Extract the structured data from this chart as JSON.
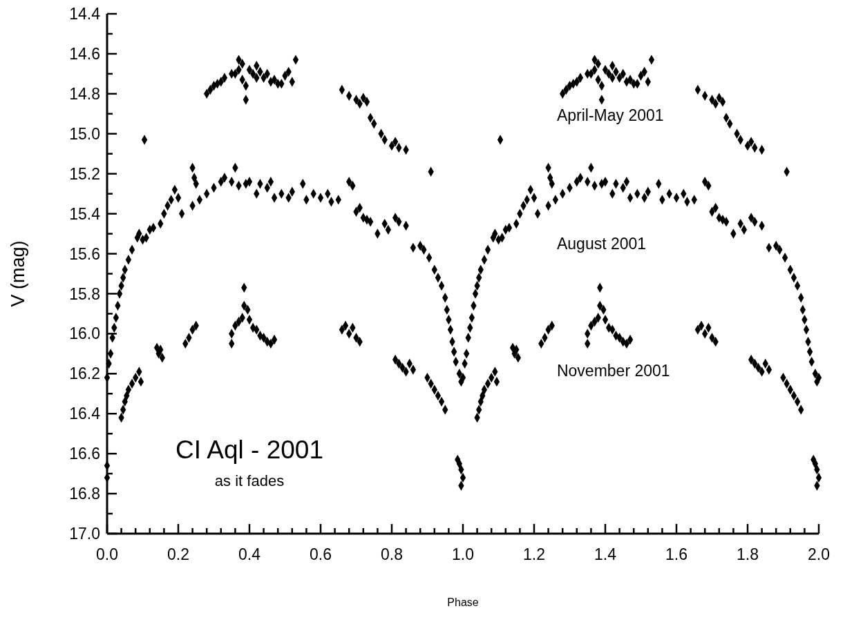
{
  "chart_data": {
    "type": "scatter",
    "title": "CI Aql - 2001",
    "subtitle": "as it fades",
    "xlabel": "Phase",
    "ylabel": "V (mag)",
    "marker": "diamond",
    "xlim": [
      0,
      2
    ],
    "ylim": [
      17,
      14.4
    ],
    "xticks": [
      {
        "value": 0,
        "label": "0.0"
      },
      {
        "value": 0.04,
        "label": null
      },
      {
        "value": 0.08,
        "label": null
      },
      {
        "value": 0.12,
        "label": null
      },
      {
        "value": 0.16,
        "label": null
      },
      {
        "value": 0.2,
        "label": "0.2"
      },
      {
        "value": 0.24,
        "label": null
      },
      {
        "value": 0.28,
        "label": null
      },
      {
        "value": 0.32,
        "label": null
      },
      {
        "value": 0.36,
        "label": null
      },
      {
        "value": 0.4,
        "label": "0.4"
      },
      {
        "value": 0.44,
        "label": null
      },
      {
        "value": 0.48,
        "label": null
      },
      {
        "value": 0.52,
        "label": null
      },
      {
        "value": 0.56,
        "label": null
      },
      {
        "value": 0.6,
        "label": "0.6"
      },
      {
        "value": 0.64,
        "label": null
      },
      {
        "value": 0.68,
        "label": null
      },
      {
        "value": 0.72,
        "label": null
      },
      {
        "value": 0.76,
        "label": null
      },
      {
        "value": 0.8,
        "label": "0.8"
      },
      {
        "value": 0.84,
        "label": null
      },
      {
        "value": 0.88,
        "label": null
      },
      {
        "value": 0.92,
        "label": null
      },
      {
        "value": 0.96,
        "label": null
      },
      {
        "value": 1,
        "label": "1.0"
      },
      {
        "value": 1.04,
        "label": null
      },
      {
        "value": 1.08,
        "label": null
      },
      {
        "value": 1.12,
        "label": null
      },
      {
        "value": 1.16,
        "label": null
      },
      {
        "value": 1.2,
        "label": "1.2"
      },
      {
        "value": 1.24,
        "label": null
      },
      {
        "value": 1.28,
        "label": null
      },
      {
        "value": 1.32,
        "label": null
      },
      {
        "value": 1.36,
        "label": null
      },
      {
        "value": 1.4,
        "label": "1.4"
      },
      {
        "value": 1.44,
        "label": null
      },
      {
        "value": 1.48,
        "label": null
      },
      {
        "value": 1.52,
        "label": null
      },
      {
        "value": 1.56,
        "label": null
      },
      {
        "value": 1.6,
        "label": "1.6"
      },
      {
        "value": 1.64,
        "label": null
      },
      {
        "value": 1.68,
        "label": null
      },
      {
        "value": 1.72,
        "label": null
      },
      {
        "value": 1.76,
        "label": null
      },
      {
        "value": 1.8,
        "label": "1.8"
      },
      {
        "value": 1.84,
        "label": null
      },
      {
        "value": 1.88,
        "label": null
      },
      {
        "value": 1.92,
        "label": null
      },
      {
        "value": 1.96,
        "label": null
      },
      {
        "value": 2,
        "label": "2.0"
      }
    ],
    "yticks": [
      {
        "value": 14.4,
        "label": "14.4"
      },
      {
        "value": 14.5,
        "label": null
      },
      {
        "value": 14.6,
        "label": "14.6"
      },
      {
        "value": 14.7,
        "label": null
      },
      {
        "value": 14.8,
        "label": "14.8"
      },
      {
        "value": 14.9,
        "label": null
      },
      {
        "value": 15,
        "label": "15.0"
      },
      {
        "value": 15.1,
        "label": null
      },
      {
        "value": 15.2,
        "label": "15.2"
      },
      {
        "value": 15.3,
        "label": null
      },
      {
        "value": 15.4,
        "label": "15.4"
      },
      {
        "value": 15.5,
        "label": null
      },
      {
        "value": 15.6,
        "label": "15.6"
      },
      {
        "value": 15.7,
        "label": null
      },
      {
        "value": 15.8,
        "label": "15.8"
      },
      {
        "value": 15.9,
        "label": null
      },
      {
        "value": 16,
        "label": "16.0"
      },
      {
        "value": 16.1,
        "label": null
      },
      {
        "value": 16.2,
        "label": "16.2"
      },
      {
        "value": 16.3,
        "label": null
      },
      {
        "value": 16.4,
        "label": "16.4"
      },
      {
        "value": 16.5,
        "label": null
      },
      {
        "value": 16.6,
        "label": "16.6"
      },
      {
        "value": 16.7,
        "label": null
      },
      {
        "value": 16.8,
        "label": "16.8"
      },
      {
        "value": 16.9,
        "label": null
      },
      {
        "value": 17,
        "label": "17.0"
      }
    ],
    "series": [
      {
        "name": "April-May 2001",
        "color": "#000000",
        "x": [
          0.105,
          0.28,
          0.29,
          0.3,
          0.31,
          0.32,
          0.33,
          0.35,
          0.36,
          0.37,
          0.37,
          0.38,
          0.38,
          0.39,
          0.39,
          0.4,
          0.41,
          0.42,
          0.42,
          0.43,
          0.44,
          0.45,
          0.46,
          0.47,
          0.48,
          0.49,
          0.5,
          0.51,
          0.53,
          0.52,
          0.66,
          0.68,
          0.7,
          0.71,
          0.72,
          0.73,
          0.74,
          0.75,
          0.77,
          0.78,
          0.8,
          0.81,
          0.82,
          0.84,
          0.91,
          1.105,
          1.28,
          1.29,
          1.3,
          1.31,
          1.32,
          1.33,
          1.35,
          1.36,
          1.37,
          1.37,
          1.38,
          1.38,
          1.39,
          1.39,
          1.4,
          1.41,
          1.42,
          1.42,
          1.43,
          1.44,
          1.45,
          1.46,
          1.47,
          1.48,
          1.49,
          1.5,
          1.51,
          1.53,
          1.52,
          1.66,
          1.68,
          1.7,
          1.71,
          1.72,
          1.73,
          1.74,
          1.75,
          1.77,
          1.78,
          1.8,
          1.81,
          1.82,
          1.84,
          1.91
        ],
        "values": [
          15.03,
          14.8,
          14.78,
          14.76,
          14.75,
          14.74,
          14.72,
          14.7,
          14.7,
          14.68,
          14.63,
          14.65,
          14.73,
          14.76,
          14.83,
          14.68,
          14.7,
          14.66,
          14.72,
          14.69,
          14.72,
          14.7,
          14.74,
          14.73,
          14.75,
          14.75,
          14.71,
          14.69,
          14.63,
          14.74,
          14.78,
          14.81,
          14.83,
          14.85,
          14.82,
          14.84,
          14.92,
          14.95,
          15.0,
          15.03,
          15.06,
          15.04,
          15.07,
          15.08,
          15.19,
          15.03,
          14.8,
          14.78,
          14.76,
          14.75,
          14.74,
          14.72,
          14.7,
          14.7,
          14.68,
          14.63,
          14.65,
          14.73,
          14.76,
          14.83,
          14.68,
          14.7,
          14.66,
          14.72,
          14.69,
          14.72,
          14.7,
          14.74,
          14.73,
          14.75,
          14.75,
          14.71,
          14.69,
          14.63,
          14.74,
          14.78,
          14.81,
          14.83,
          14.85,
          14.82,
          14.84,
          14.92,
          14.95,
          15.0,
          15.03,
          15.06,
          15.04,
          15.07,
          15.08,
          15.19
        ]
      },
      {
        "name": "August 2001",
        "color": "#000000",
        "x": [
          0,
          0.005,
          0.01,
          0.015,
          0.02,
          0.025,
          0.03,
          0.035,
          0.04,
          0.045,
          0.05,
          0.06,
          0.07,
          0.085,
          0.09,
          0.1,
          0.11,
          0.12,
          0.13,
          0.15,
          0.16,
          0.17,
          0.18,
          0.19,
          0.2,
          0.21,
          0.24,
          0.245,
          0.25,
          0.24,
          0.26,
          0.28,
          0.3,
          0.32,
          0.33,
          0.35,
          0.36,
          0.37,
          0.39,
          0.4,
          0.42,
          0.43,
          0.45,
          0.46,
          0.47,
          0.49,
          0.51,
          0.52,
          0.55,
          0.56,
          0.58,
          0.6,
          0.62,
          0.63,
          0.65,
          0.68,
          0.69,
          0.7,
          0.71,
          0.72,
          0.73,
          0.74,
          0.76,
          0.78,
          0.79,
          0.81,
          0.82,
          0.84,
          0.86,
          0.88,
          0.89,
          0.905,
          0.92,
          0.93,
          0.94,
          0.95,
          0.955,
          0.96,
          0.965,
          0.97,
          0.975,
          0.98,
          0.99,
          0.995,
          1,
          1.005,
          1.01,
          1.015,
          1.02,
          1.025,
          1.03,
          1.035,
          1.04,
          1.045,
          1.05,
          1.06,
          1.07,
          1.085,
          1.09,
          1.1,
          1.11,
          1.12,
          1.13,
          1.15,
          1.16,
          1.17,
          1.18,
          1.19,
          1.2,
          1.21,
          1.24,
          1.245,
          1.25,
          1.24,
          1.26,
          1.28,
          1.3,
          1.32,
          1.33,
          1.35,
          1.36,
          1.37,
          1.39,
          1.4,
          1.42,
          1.43,
          1.45,
          1.46,
          1.47,
          1.49,
          1.51,
          1.52,
          1.55,
          1.56,
          1.58,
          1.6,
          1.62,
          1.63,
          1.65,
          1.68,
          1.69,
          1.7,
          1.71,
          1.72,
          1.73,
          1.74,
          1.76,
          1.78,
          1.79,
          1.81,
          1.82,
          1.84,
          1.86,
          1.88,
          1.89,
          1.905,
          1.92,
          1.93,
          1.94,
          1.95,
          1.955,
          1.96,
          1.965,
          1.97,
          1.975,
          1.98,
          1.99,
          1.995,
          2
        ],
        "values": [
          16.22,
          16.15,
          16.1,
          16.02,
          15.97,
          15.92,
          15.86,
          15.8,
          15.76,
          15.72,
          15.68,
          15.63,
          15.58,
          15.52,
          15.5,
          15.53,
          15.52,
          15.48,
          15.47,
          15.45,
          15.4,
          15.36,
          15.33,
          15.28,
          15.32,
          15.4,
          15.17,
          15.22,
          15.25,
          15.36,
          15.33,
          15.3,
          15.27,
          15.24,
          15.22,
          15.24,
          15.17,
          15.26,
          15.25,
          15.24,
          15.3,
          15.25,
          15.27,
          15.24,
          15.32,
          15.3,
          15.32,
          15.29,
          15.25,
          15.33,
          15.3,
          15.32,
          15.3,
          15.34,
          15.33,
          15.24,
          15.26,
          15.39,
          15.37,
          15.42,
          15.43,
          15.44,
          15.5,
          15.45,
          15.48,
          15.42,
          15.44,
          15.46,
          15.57,
          15.56,
          15.58,
          15.62,
          15.68,
          15.72,
          15.76,
          15.82,
          15.88,
          15.93,
          15.98,
          16.04,
          16.09,
          16.14,
          16.2,
          16.24,
          16.22,
          16.15,
          16.1,
          16.02,
          15.97,
          15.92,
          15.86,
          15.8,
          15.76,
          15.72,
          15.68,
          15.63,
          15.58,
          15.52,
          15.5,
          15.53,
          15.52,
          15.48,
          15.47,
          15.45,
          15.4,
          15.36,
          15.33,
          15.28,
          15.32,
          15.4,
          15.17,
          15.22,
          15.25,
          15.36,
          15.33,
          15.3,
          15.27,
          15.24,
          15.22,
          15.24,
          15.17,
          15.26,
          15.25,
          15.24,
          15.3,
          15.25,
          15.27,
          15.24,
          15.32,
          15.3,
          15.32,
          15.29,
          15.25,
          15.33,
          15.3,
          15.32,
          15.3,
          15.34,
          15.33,
          15.24,
          15.26,
          15.39,
          15.37,
          15.42,
          15.43,
          15.44,
          15.5,
          15.45,
          15.48,
          15.42,
          15.44,
          15.46,
          15.57,
          15.56,
          15.58,
          15.62,
          15.68,
          15.72,
          15.76,
          15.82,
          15.88,
          15.93,
          15.98,
          16.04,
          16.09,
          16.14,
          16.2,
          16.24,
          16.22
        ]
      },
      {
        "name": "November 2001",
        "color": "#000000",
        "x": [
          0,
          0,
          0.04,
          0.045,
          0.05,
          0.055,
          0.06,
          0.07,
          0.08,
          0.09,
          0.095,
          0.14,
          0.145,
          0.15,
          0.155,
          0.22,
          0.23,
          0.24,
          0.25,
          0.35,
          0.35,
          0.36,
          0.37,
          0.38,
          0.385,
          0.385,
          0.395,
          0.4,
          0.41,
          0.42,
          0.43,
          0.44,
          0.45,
          0.46,
          0.47,
          0.66,
          0.67,
          0.68,
          0.69,
          0.7,
          0.71,
          0.81,
          0.82,
          0.83,
          0.84,
          0.85,
          0.86,
          0.9,
          0.91,
          0.92,
          0.93,
          0.94,
          0.95,
          0.985,
          0.99,
          0.995,
          1,
          0.995,
          1.04,
          1.045,
          1.05,
          1.055,
          1.06,
          1.07,
          1.08,
          1.09,
          1.095,
          1.14,
          1.145,
          1.15,
          1.155,
          1.22,
          1.23,
          1.24,
          1.25,
          1.35,
          1.35,
          1.36,
          1.37,
          1.38,
          1.385,
          1.385,
          1.395,
          1.4,
          1.41,
          1.42,
          1.43,
          1.44,
          1.45,
          1.46,
          1.47,
          1.66,
          1.67,
          1.68,
          1.69,
          1.7,
          1.71,
          1.81,
          1.82,
          1.83,
          1.84,
          1.85,
          1.86,
          1.9,
          1.91,
          1.92,
          1.93,
          1.94,
          1.95,
          1.985,
          1.99,
          1.995,
          2,
          1.995
        ],
        "values": [
          16.66,
          16.72,
          16.42,
          16.38,
          16.34,
          16.31,
          16.28,
          16.25,
          16.22,
          16.19,
          16.24,
          16.07,
          16.1,
          16.08,
          16.12,
          16.05,
          16.02,
          15.98,
          15.96,
          16.0,
          16.05,
          15.96,
          15.94,
          15.92,
          15.86,
          15.77,
          15.88,
          15.93,
          15.97,
          15.98,
          16.01,
          16.02,
          16.04,
          16.05,
          16.03,
          15.98,
          15.96,
          16.0,
          15.97,
          16.02,
          16.04,
          16.13,
          16.15,
          16.17,
          16.19,
          16.15,
          16.18,
          16.22,
          16.25,
          16.28,
          16.31,
          16.34,
          16.38,
          16.63,
          16.65,
          16.68,
          16.72,
          16.76,
          16.42,
          16.38,
          16.34,
          16.31,
          16.28,
          16.25,
          16.22,
          16.19,
          16.24,
          16.07,
          16.1,
          16.08,
          16.12,
          16.05,
          16.02,
          15.98,
          15.96,
          16.0,
          16.05,
          15.96,
          15.94,
          15.92,
          15.86,
          15.77,
          15.88,
          15.93,
          15.97,
          15.98,
          16.01,
          16.02,
          16.04,
          16.05,
          16.03,
          15.98,
          15.96,
          16.0,
          15.97,
          16.02,
          16.04,
          16.13,
          16.15,
          16.17,
          16.19,
          16.15,
          16.18,
          16.22,
          16.25,
          16.28,
          16.31,
          16.34,
          16.38,
          16.63,
          16.65,
          16.68,
          16.72,
          16.76
        ]
      }
    ]
  }
}
